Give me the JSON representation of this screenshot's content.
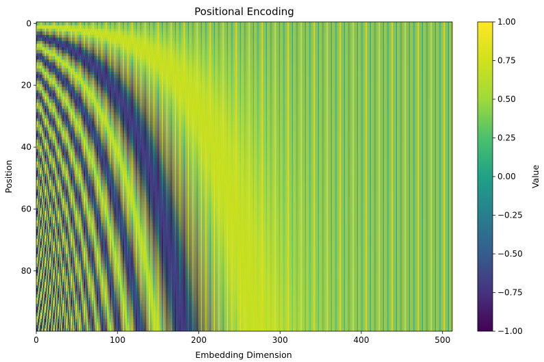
{
  "chart_data": {
    "type": "heatmap",
    "title": "Positional Encoding",
    "xlabel": "Embedding Dimension",
    "ylabel": "Position",
    "function": "sinusoidal positional encoding: even dims sin(pos/10000^(2i/d)), odd dims cos(pos/10000^(2i/d))",
    "rows": 100,
    "columns": 512,
    "xlim": [
      0,
      512
    ],
    "ylim": [
      100,
      0
    ],
    "x_ticks": [
      0,
      100,
      200,
      300,
      400,
      500
    ],
    "x_tick_labels": [
      "0",
      "100",
      "200",
      "300",
      "400",
      "500"
    ],
    "y_ticks": [
      0,
      20,
      40,
      60,
      80
    ],
    "y_tick_labels": [
      "0",
      "20",
      "40",
      "60",
      "80"
    ],
    "colormap": "viridis",
    "vmin": -1.0,
    "vmax": 1.0,
    "colorbar": {
      "label": "Value",
      "ticks": [
        1.0,
        0.75,
        0.5,
        0.25,
        0.0,
        -0.25,
        -0.5,
        -0.75,
        -1.0
      ],
      "tick_labels": [
        "1.00",
        "0.75",
        "0.50",
        "0.25",
        "0.00",
        "−0.25",
        "−0.50",
        "−0.75",
        "−1.00"
      ],
      "placement": "right"
    },
    "grid": false
  }
}
